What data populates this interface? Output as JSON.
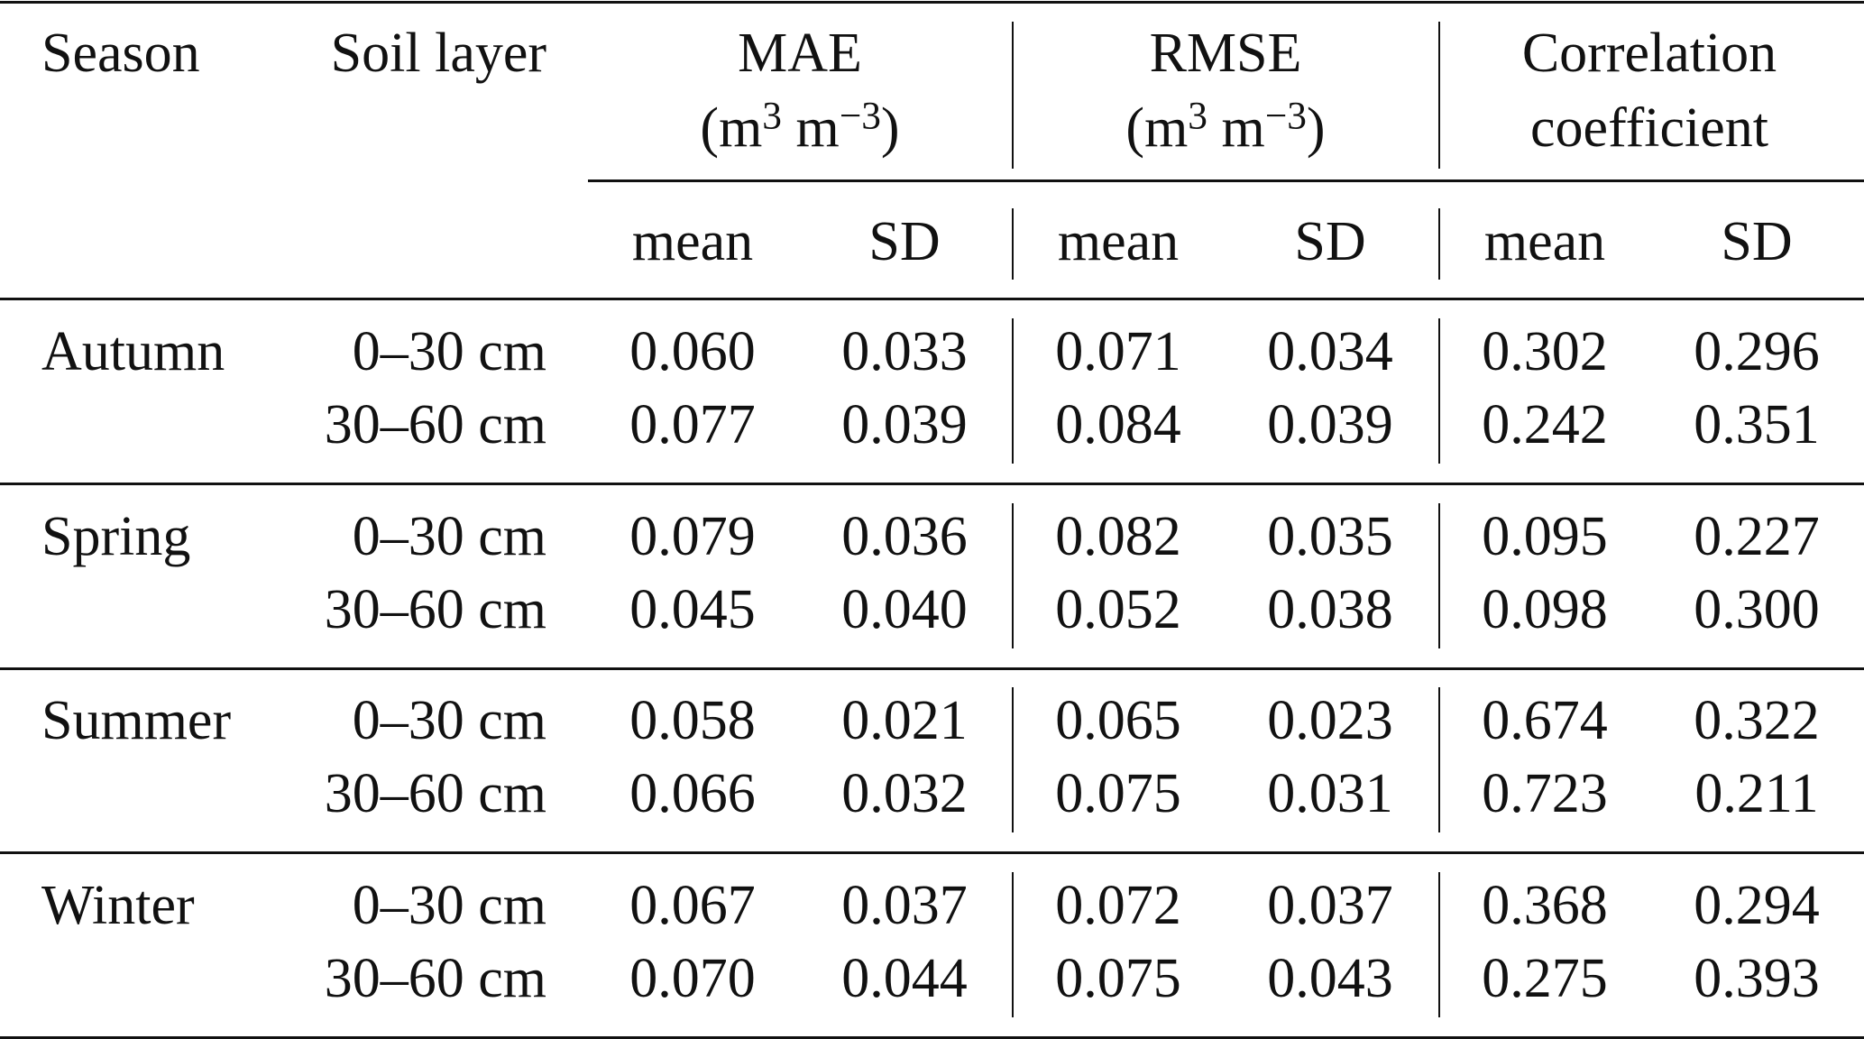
{
  "headers": {
    "season": "Season",
    "soil_layer": "Soil layer",
    "groups": [
      {
        "title": "MAE",
        "unit_base": "(m",
        "unit_exp1": "3",
        "unit_mid": " m",
        "unit_exp2": "−3",
        "unit_end": ")"
      },
      {
        "title": "RMSE",
        "unit_base": "(m",
        "unit_exp1": "3",
        "unit_mid": " m",
        "unit_exp2": "−3",
        "unit_end": ")"
      },
      {
        "title": "Correlation",
        "subtitle": "coefficient"
      }
    ],
    "sub": [
      "mean",
      "SD",
      "mean",
      "SD",
      "mean",
      "SD"
    ]
  },
  "sections": [
    {
      "season": "Autumn",
      "rows": [
        {
          "layer": "0–30 cm",
          "values": [
            "0.060",
            "0.033",
            "0.071",
            "0.034",
            "0.302",
            "0.296"
          ]
        },
        {
          "layer": "30–60 cm",
          "values": [
            "0.077",
            "0.039",
            "0.084",
            "0.039",
            "0.242",
            "0.351"
          ]
        }
      ]
    },
    {
      "season": "Spring",
      "rows": [
        {
          "layer": "0–30 cm",
          "values": [
            "0.079",
            "0.036",
            "0.082",
            "0.035",
            "0.095",
            "0.227"
          ]
        },
        {
          "layer": "30–60 cm",
          "values": [
            "0.045",
            "0.040",
            "0.052",
            "0.038",
            "0.098",
            "0.300"
          ]
        }
      ]
    },
    {
      "season": "Summer",
      "rows": [
        {
          "layer": "0–30 cm",
          "values": [
            "0.058",
            "0.021",
            "0.065",
            "0.023",
            "0.674",
            "0.322"
          ]
        },
        {
          "layer": "30–60 cm",
          "values": [
            "0.066",
            "0.032",
            "0.075",
            "0.031",
            "0.723",
            "0.211"
          ]
        }
      ]
    },
    {
      "season": "Winter",
      "rows": [
        {
          "layer": "0–30 cm",
          "values": [
            "0.067",
            "0.037",
            "0.072",
            "0.037",
            "0.368",
            "0.294"
          ]
        },
        {
          "layer": "30–60 cm",
          "values": [
            "0.070",
            "0.044",
            "0.075",
            "0.043",
            "0.275",
            "0.393"
          ]
        }
      ]
    }
  ]
}
